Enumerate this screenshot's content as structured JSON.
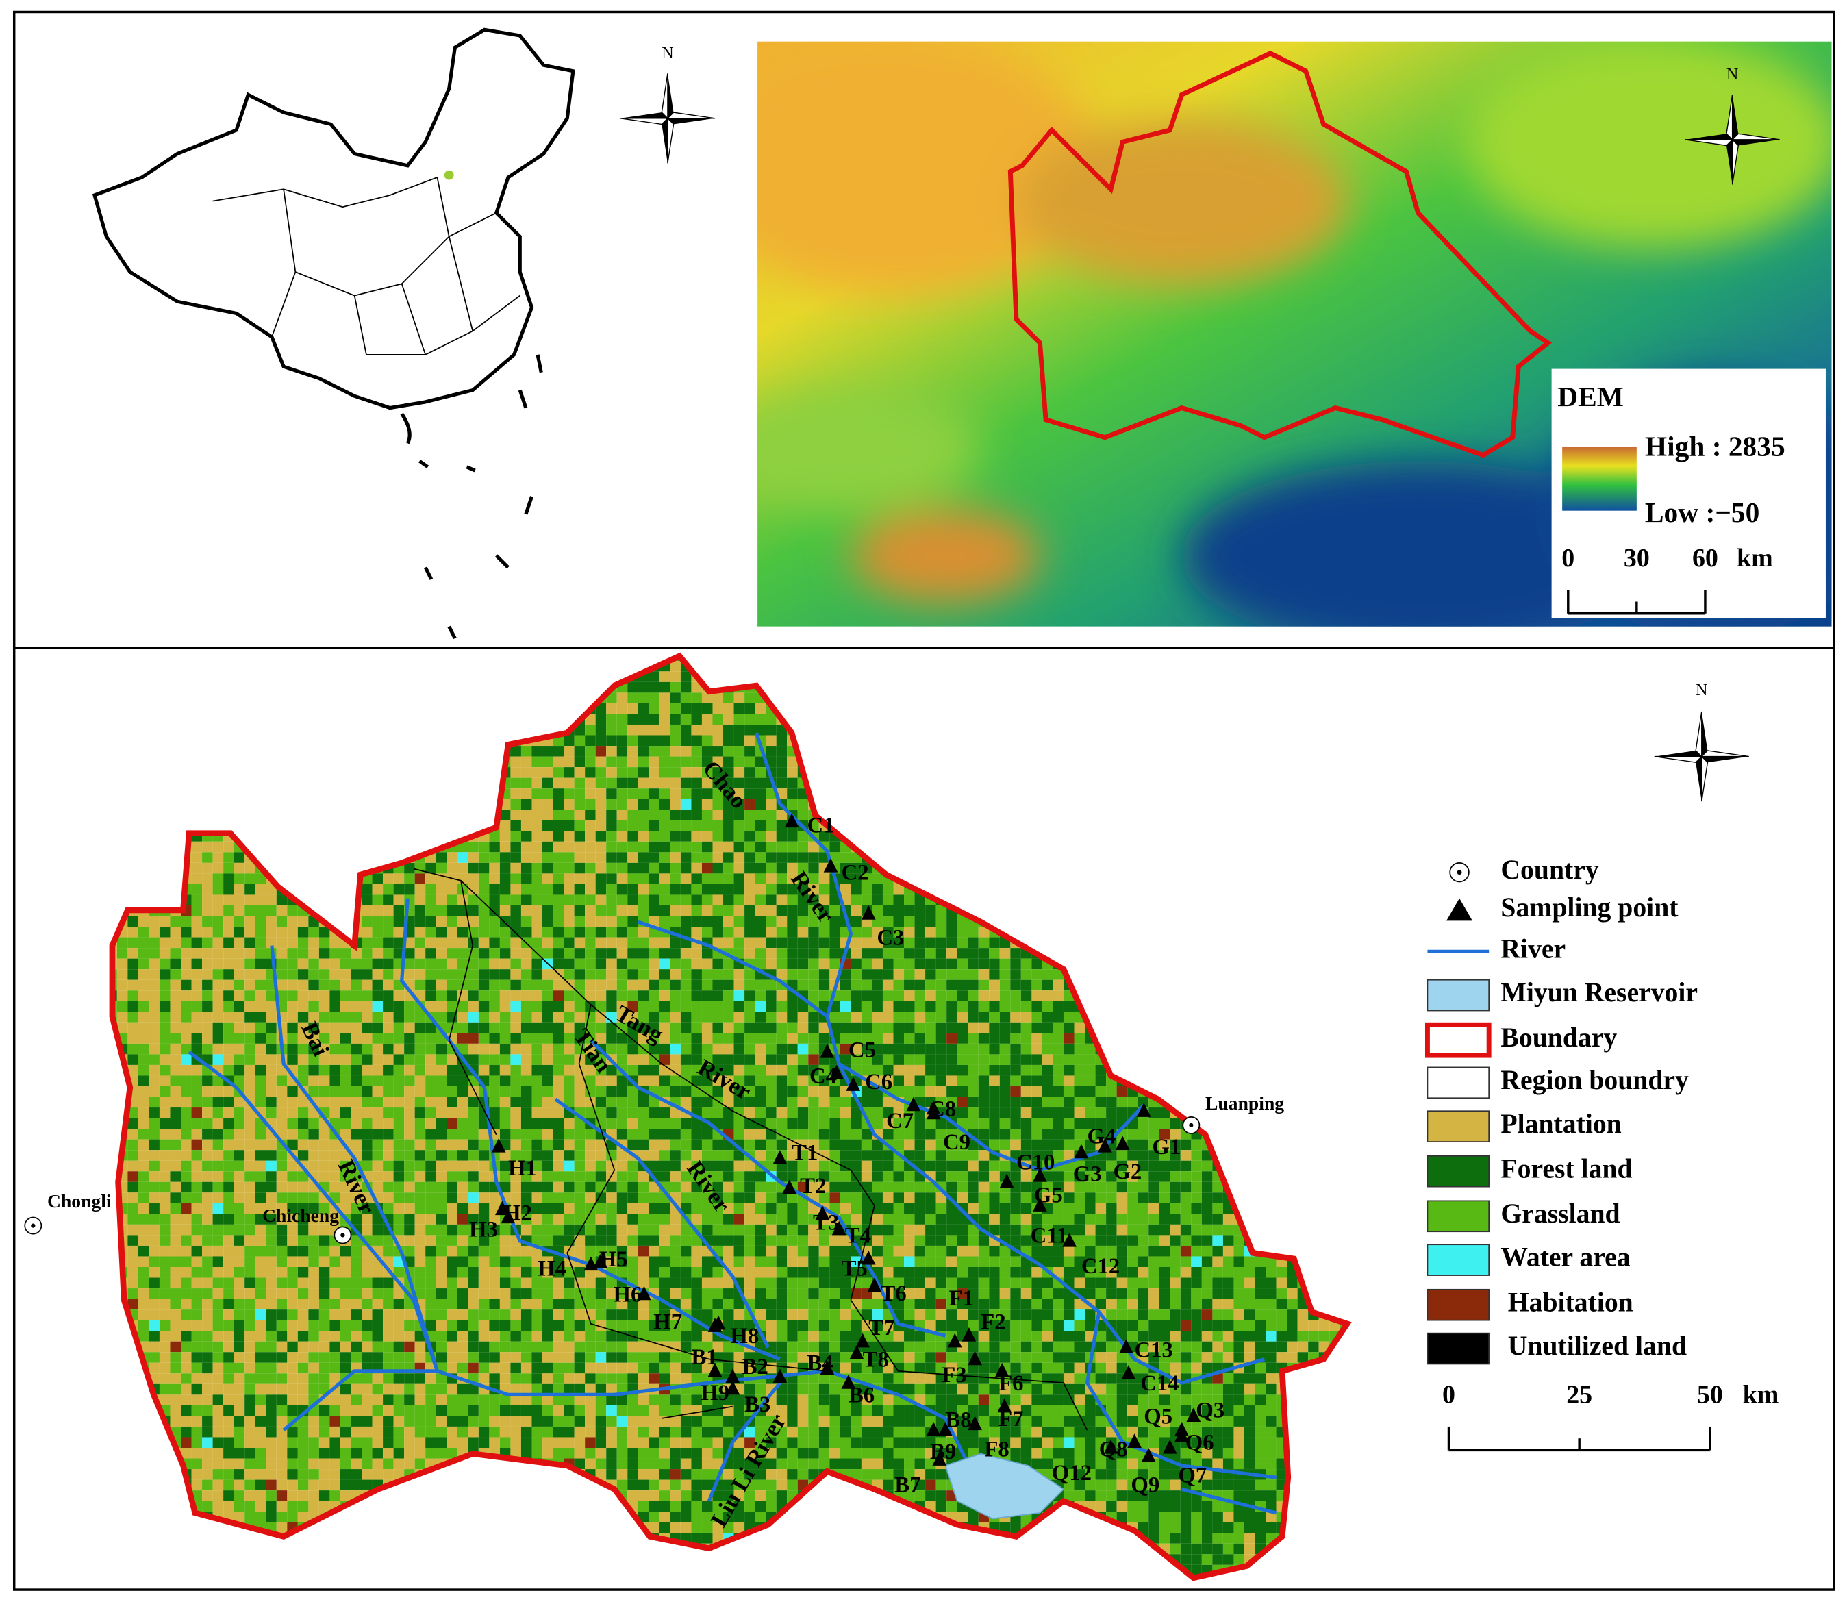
{
  "inset": {
    "north": "N"
  },
  "dem": {
    "north": "N",
    "title": "DEM",
    "high": {
      "value": 2835,
      "label": "High : 2835"
    },
    "low": {
      "value": -50,
      "label": "Low :−50"
    },
    "scale_ticks": [
      0,
      30,
      60
    ],
    "scale_unit": "km"
  },
  "landuse_map": {
    "north": "N",
    "places": [
      "Chongli",
      "Chicheng",
      "Luanping"
    ],
    "river_labels": [
      "Chao",
      "River",
      "Bai",
      "River",
      "Tang",
      "River",
      "Tian",
      "River",
      "Liu Li River"
    ],
    "sampling_points": [
      "C1",
      "C2",
      "C3",
      "C4",
      "C5",
      "C6",
      "C7",
      "C8",
      "C9",
      "C10",
      "C11",
      "C12",
      "C13",
      "C14",
      "G1",
      "G2",
      "G3",
      "G4",
      "G5",
      "T1",
      "T2",
      "T3",
      "T4",
      "T5",
      "T6",
      "T7",
      "T8",
      "H1",
      "H2",
      "H3",
      "H4",
      "H5",
      "H6",
      "H7",
      "H8",
      "H9",
      "B1",
      "B2",
      "B3",
      "B4",
      "B6",
      "B7",
      "B8",
      "B9",
      "F1",
      "F2",
      "F3",
      "F6",
      "F7",
      "F8",
      "Q3",
      "Q5",
      "Q6",
      "Q7",
      "Q8",
      "Q9",
      "Q12"
    ],
    "legend": [
      "Country",
      "Sampling point",
      "River",
      "Miyun Reservoir",
      "Boundary",
      "Region boundry",
      "Plantation",
      "Forest land",
      "Grassland",
      "Water area",
      "Habitation",
      "Unutilized land"
    ],
    "scale_ticks": [
      0,
      25,
      50
    ],
    "scale_unit": "km"
  }
}
